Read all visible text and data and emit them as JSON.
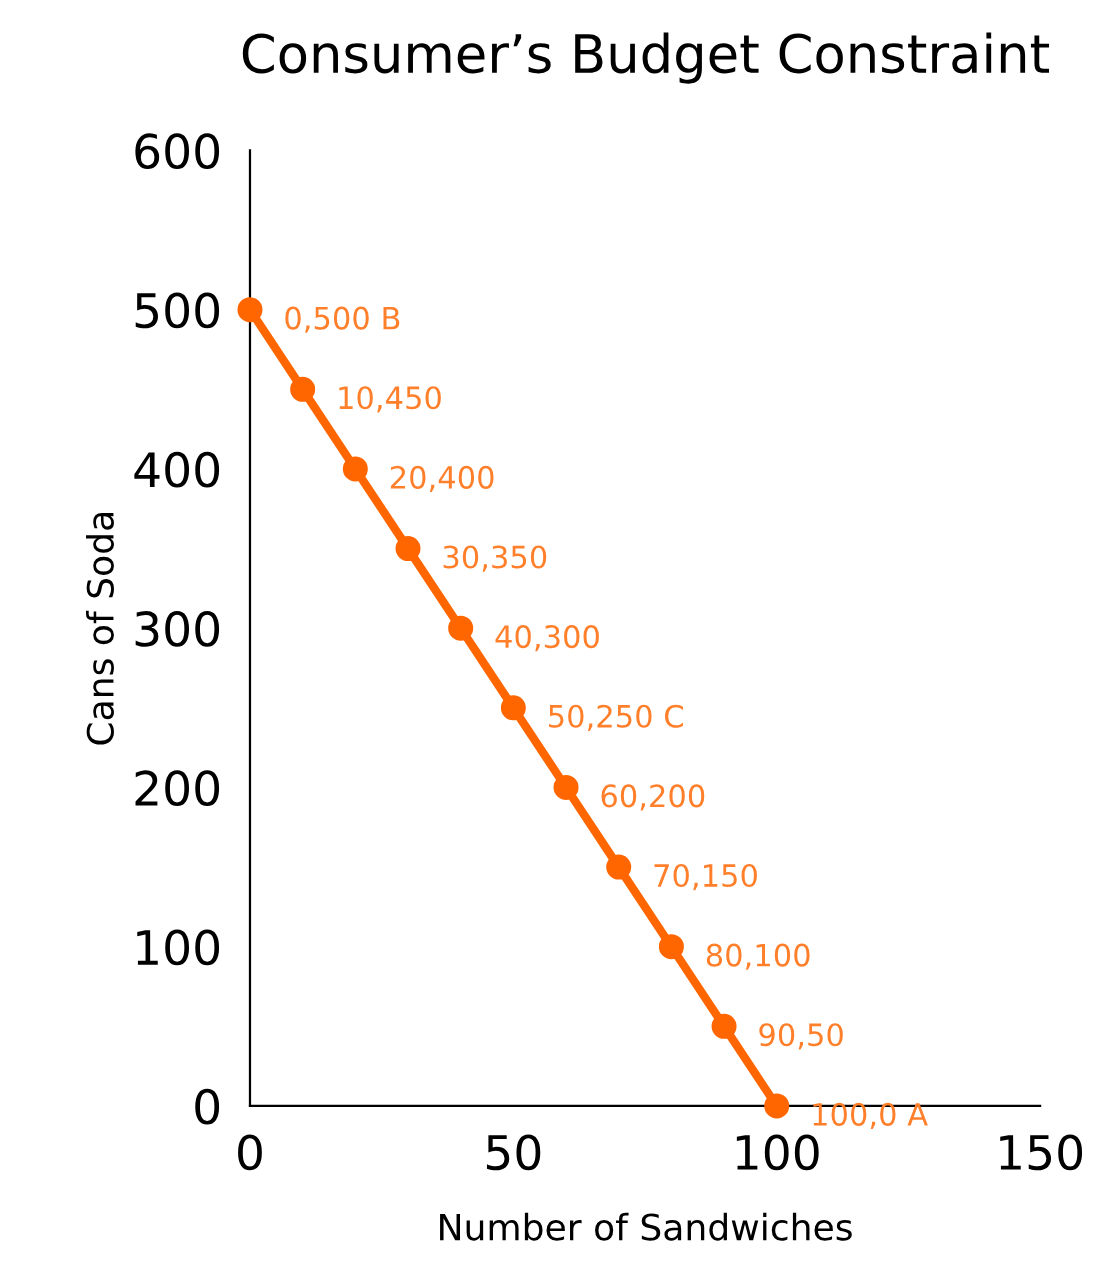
{
  "chart_data": {
    "type": "line",
    "title": "Consumer’s Budget Constraint",
    "xlabel": "Number of Sandwiches",
    "ylabel": "Cans of Soda",
    "x": [
      0,
      10,
      20,
      30,
      40,
      50,
      60,
      70,
      80,
      90,
      100
    ],
    "values": [
      500,
      450,
      400,
      350,
      300,
      250,
      200,
      150,
      100,
      50,
      0
    ],
    "annotations": [
      {
        "text": "0,500 B",
        "x": 0,
        "y": 500
      },
      {
        "text": "10,450",
        "x": 10,
        "y": 450
      },
      {
        "text": "20,400",
        "x": 20,
        "y": 400
      },
      {
        "text": "30,350",
        "x": 30,
        "y": 350
      },
      {
        "text": "40,300",
        "x": 40,
        "y": 300
      },
      {
        "text": "50,250 C",
        "x": 50,
        "y": 250
      },
      {
        "text": "60,200",
        "x": 60,
        "y": 200
      },
      {
        "text": "70,150",
        "x": 70,
        "y": 150
      },
      {
        "text": "80,100",
        "x": 80,
        "y": 100
      },
      {
        "text": "90,50",
        "x": 90,
        "y": 50
      },
      {
        "text": "100,0 A",
        "x": 100,
        "y": 0
      }
    ],
    "color": "#ff6600",
    "marker": "circle",
    "line_style": "solid",
    "xlim": [
      0,
      150
    ],
    "xticks": [
      0,
      50,
      100,
      150
    ],
    "ylim": [
      0,
      600
    ],
    "yticks": [
      0,
      100,
      200,
      300,
      400,
      500,
      600
    ],
    "grid": false
  }
}
